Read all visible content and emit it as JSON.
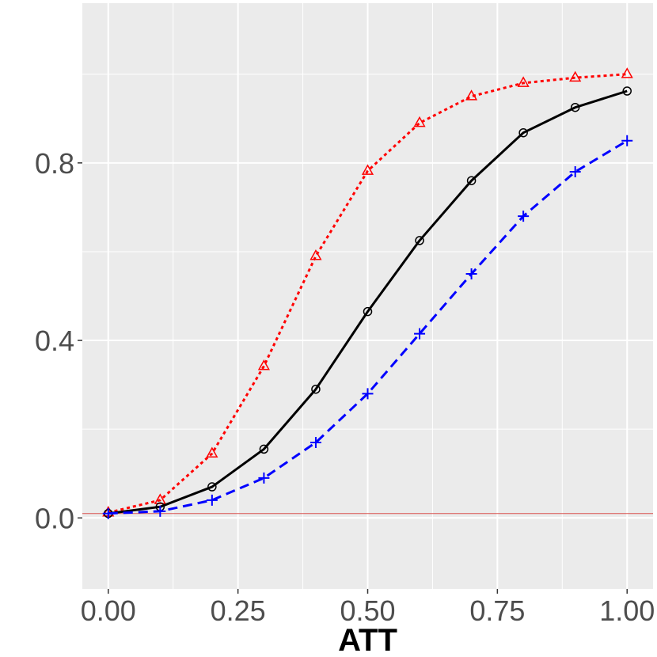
{
  "chart_data": {
    "type": "line",
    "title": "",
    "xlabel": "ATT",
    "ylabel": "",
    "xlim": [
      -0.05,
      1.05
    ],
    "ylim": [
      -0.16,
      1.16
    ],
    "x_ticks": [
      0,
      0.25,
      0.5,
      0.75,
      1.0
    ],
    "x_tick_labels": [
      "0.00",
      "0.25",
      "0.50",
      "0.75",
      "1.00"
    ],
    "y_ticks": [
      0,
      0.4,
      0.8
    ],
    "y_tick_labels": [
      "0.0",
      "0.4",
      "0.8"
    ],
    "grid": true,
    "legend": "none",
    "reference_line": {
      "y": 0.01,
      "color": "#d9534f"
    },
    "x": [
      0,
      0.1,
      0.2,
      0.3,
      0.4,
      0.5,
      0.6,
      0.7,
      0.8,
      0.9,
      1.0
    ],
    "series": [
      {
        "color": "#ff0000",
        "line_style": "dotted",
        "marker": "triangle",
        "values": [
          0.012,
          0.04,
          0.145,
          0.342,
          0.59,
          0.782,
          0.89,
          0.95,
          0.98,
          0.992,
          1.0
        ]
      },
      {
        "color": "#000000",
        "line_style": "solid",
        "marker": "circle",
        "values": [
          0.01,
          0.025,
          0.07,
          0.155,
          0.29,
          0.465,
          0.625,
          0.76,
          0.868,
          0.925,
          0.962
        ]
      },
      {
        "color": "#0000ff",
        "line_style": "dashed",
        "marker": "plus",
        "values": [
          0.01,
          0.015,
          0.04,
          0.09,
          0.17,
          0.28,
          0.415,
          0.55,
          0.68,
          0.78,
          0.85
        ]
      }
    ]
  }
}
